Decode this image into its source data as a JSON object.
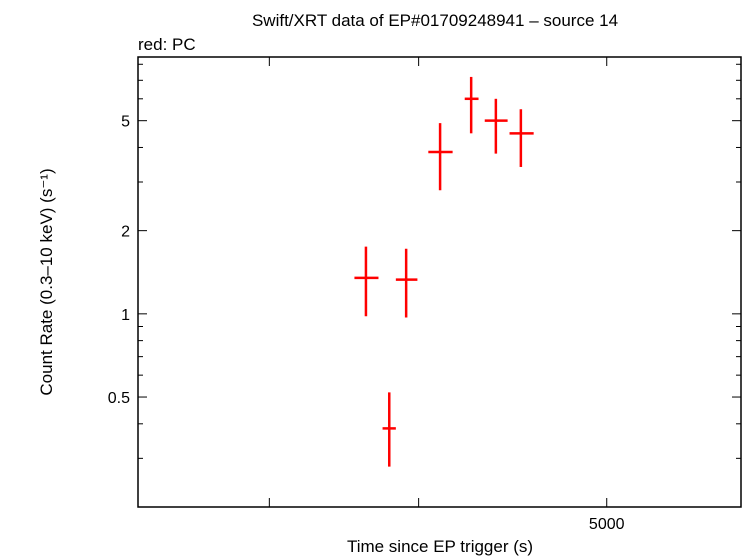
{
  "chart_data": {
    "type": "scatter",
    "title": "Swift/XRT data of EP#01709248941 – source 14",
    "subtitle": "red: PC",
    "xlabel": "Time since EP trigger (s)",
    "ylabel": "Count Rate (0.3–10 keV) (s⁻¹)",
    "x_scale": "log",
    "y_scale": "log",
    "xlim": [
      1400,
      7200
    ],
    "ylim": [
      0.2,
      8.5
    ],
    "x_tick_labels": [
      {
        "value": 5000,
        "label": "5000"
      }
    ],
    "x_major_ticks": [
      2000,
      3000,
      5000
    ],
    "y_tick_labels": [
      {
        "value": 0.5,
        "label": "0.5"
      },
      {
        "value": 1,
        "label": "1"
      },
      {
        "value": 2,
        "label": "2"
      },
      {
        "value": 5,
        "label": "5"
      }
    ],
    "y_minor_ticks": [
      0.3,
      0.4,
      0.6,
      0.7,
      0.8,
      0.9,
      3,
      4,
      6,
      7,
      8
    ],
    "grid": false,
    "series": [
      {
        "color": "#ff0000",
        "points": [
          {
            "x": 2600,
            "x_lo": 2520,
            "x_hi": 2690,
            "y": 1.35,
            "y_lo": 0.98,
            "y_hi": 1.75
          },
          {
            "x": 2770,
            "x_lo": 2720,
            "x_hi": 2820,
            "y": 0.385,
            "y_lo": 0.28,
            "y_hi": 0.52
          },
          {
            "x": 2900,
            "x_lo": 2820,
            "x_hi": 2990,
            "y": 1.33,
            "y_lo": 0.97,
            "y_hi": 1.72
          },
          {
            "x": 3180,
            "x_lo": 3080,
            "x_hi": 3290,
            "y": 3.85,
            "y_lo": 2.8,
            "y_hi": 4.9
          },
          {
            "x": 3460,
            "x_lo": 3400,
            "x_hi": 3530,
            "y": 6.0,
            "y_lo": 4.5,
            "y_hi": 7.2
          },
          {
            "x": 3700,
            "x_lo": 3590,
            "x_hi": 3820,
            "y": 5.0,
            "y_lo": 3.8,
            "y_hi": 6.0
          },
          {
            "x": 3960,
            "x_lo": 3840,
            "x_hi": 4100,
            "y": 4.5,
            "y_lo": 3.4,
            "y_hi": 5.5
          }
        ]
      }
    ]
  }
}
